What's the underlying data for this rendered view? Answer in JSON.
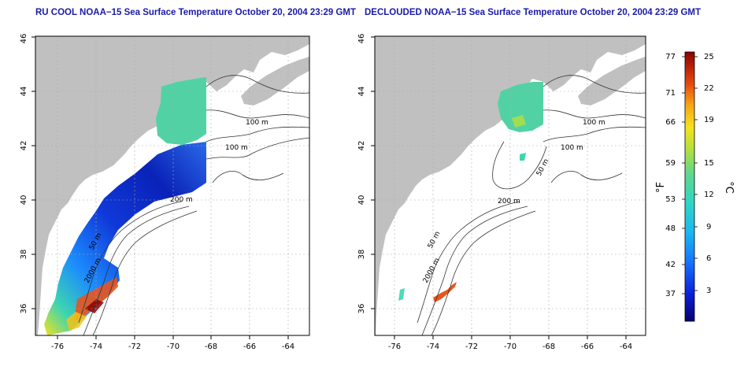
{
  "left_panel": {
    "title": "RU COOL NOAA−15 Sea Surface Temperature October 20, 2004 23:29 GMT",
    "x_ticks": [
      "-76",
      "-74",
      "-72",
      "-70",
      "-68",
      "-66",
      "-64"
    ],
    "y_ticks": [
      "36",
      "38",
      "40",
      "42",
      "44",
      "46"
    ],
    "contour_labels": [
      "100 m",
      "100 m",
      "200 m",
      "50 m",
      "2000 m"
    ]
  },
  "right_panel": {
    "title": "DECLOUDED NOAA−15 Sea Surface Temperature October 20, 2004 23:29 GMT",
    "x_ticks": [
      "-76",
      "-74",
      "-72",
      "-70",
      "-68",
      "-66",
      "-64"
    ],
    "y_ticks": [
      "36",
      "38",
      "40",
      "42",
      "44",
      "46"
    ],
    "contour_labels": [
      "100 m",
      "100 m",
      "50 m",
      "200 m",
      "50 m",
      "2000 m"
    ]
  },
  "colorbar": {
    "unit_f": "°F",
    "unit_c": "°C",
    "f_ticks": [
      "77",
      "71",
      "66",
      "59",
      "53",
      "48",
      "42",
      "37"
    ],
    "c_ticks": [
      "25",
      "22",
      "19",
      "15",
      "12",
      "9",
      "6",
      "3"
    ]
  },
  "colors": {
    "land": "#c0c0c0",
    "title": "#1a1aa6",
    "grid": "#aaaaaa"
  }
}
